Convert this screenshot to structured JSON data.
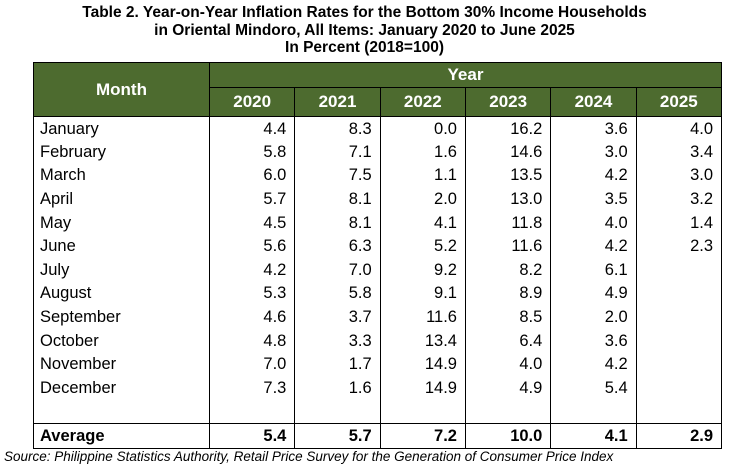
{
  "title": {
    "line1": "Table 2. Year-on-Year Inflation Rates for the Bottom 30% Income Households",
    "line2": "in Oriental Mindoro, All Items: January 2020 to June 2025",
    "line3": "In Percent (2018=100)"
  },
  "header": {
    "month": "Month",
    "year": "Year",
    "years": [
      "2020",
      "2021",
      "2022",
      "2023",
      "2024",
      "2025"
    ]
  },
  "chart_data": {
    "type": "table",
    "columns": [
      "Month",
      "2020",
      "2021",
      "2022",
      "2023",
      "2024",
      "2025"
    ],
    "rows": [
      [
        "January",
        "4.4",
        "8.3",
        "0.0",
        "16.2",
        "3.6",
        "4.0"
      ],
      [
        "February",
        "5.8",
        "7.1",
        "1.6",
        "14.6",
        "3.0",
        "3.4"
      ],
      [
        "March",
        "6.0",
        "7.5",
        "1.1",
        "13.5",
        "4.2",
        "3.0"
      ],
      [
        "April",
        "5.7",
        "8.1",
        "2.0",
        "13.0",
        "3.5",
        "3.2"
      ],
      [
        "May",
        "4.5",
        "8.1",
        "4.1",
        "11.8",
        "4.0",
        "1.4"
      ],
      [
        "June",
        "5.6",
        "6.3",
        "5.2",
        "11.6",
        "4.2",
        "2.3"
      ],
      [
        "July",
        "4.2",
        "7.0",
        "9.2",
        "8.2",
        "6.1",
        ""
      ],
      [
        "August",
        "5.3",
        "5.8",
        "9.1",
        "8.9",
        "4.9",
        ""
      ],
      [
        "September",
        "4.6",
        "3.7",
        "11.6",
        "8.5",
        "2.0",
        ""
      ],
      [
        "October",
        "4.8",
        "3.3",
        "13.4",
        "6.4",
        "3.6",
        ""
      ],
      [
        "November",
        "7.0",
        "1.7",
        "14.9",
        "4.0",
        "4.2",
        ""
      ],
      [
        "December",
        "7.3",
        "1.6",
        "14.9",
        "4.9",
        "5.4",
        ""
      ]
    ],
    "average": [
      "Average",
      "5.4",
      "5.7",
      "7.2",
      "10.0",
      "4.1",
      "2.9"
    ]
  },
  "source": "Source: Philippine Statistics Authority, Retail Price Survey for the Generation of Consumer Price Index",
  "colors": {
    "header_bg": "#4d6b2f",
    "header_text": "#ffffff"
  }
}
